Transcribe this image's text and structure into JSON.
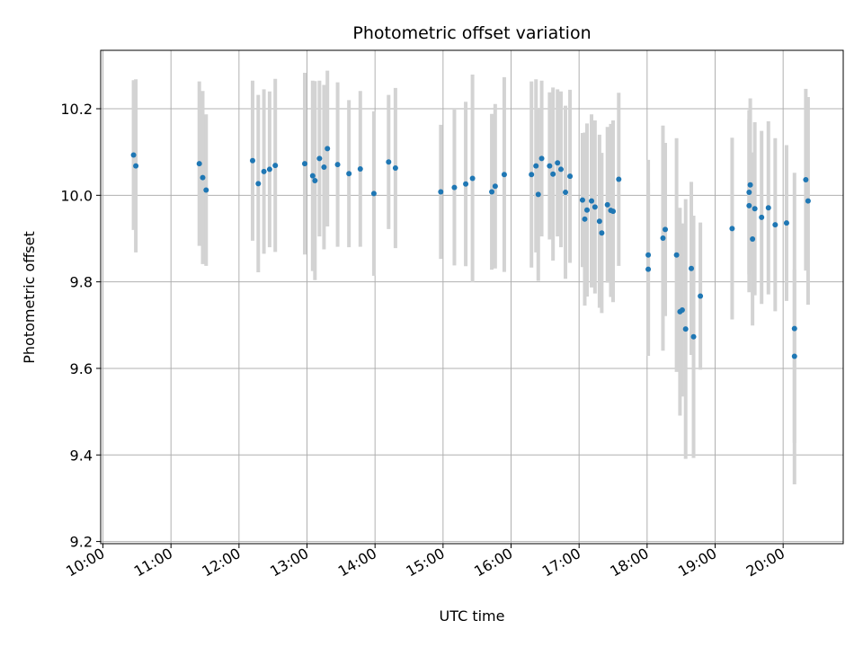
{
  "chart_data": {
    "type": "scatter",
    "title": "Photometric offset variation",
    "xlabel": "UTC time",
    "ylabel": "Photometric offset",
    "x_unit": "UTC hh:mm",
    "xlim": [
      "09:58",
      "20:53"
    ],
    "ylim": [
      9.195,
      10.335
    ],
    "x_ticks": [
      "10:00",
      "11:00",
      "12:00",
      "13:00",
      "14:00",
      "15:00",
      "16:00",
      "17:00",
      "18:00",
      "19:00",
      "20:00"
    ],
    "y_ticks": [
      9.2,
      9.4,
      9.6,
      9.8,
      10.0,
      10.2
    ],
    "y_tick_labels": [
      "9.2",
      "9.4",
      "9.6",
      "9.8",
      "10.0",
      "10.2"
    ],
    "grid": true,
    "legend": "none",
    "colors": {
      "points": "#1f77b4",
      "error_bars": "#d3d3d3",
      "grid": "#b0b0b0"
    },
    "series": [
      {
        "x": [
          "10:27",
          "10:29",
          "11:25",
          "11:28",
          "11:31",
          "12:12",
          "12:17",
          "12:22",
          "12:27",
          "12:32",
          "12:58",
          "13:05",
          "13:07",
          "13:11",
          "13:15",
          "13:18",
          "13:27",
          "13:37",
          "13:47",
          "13:59",
          "14:12",
          "14:18",
          "14:58",
          "15:10",
          "15:20",
          "15:26",
          "15:43",
          "15:46",
          "15:54",
          "16:18",
          "16:22",
          "16:24",
          "16:27",
          "16:34",
          "16:37",
          "16:41",
          "16:44",
          "16:48",
          "16:52",
          "17:03",
          "17:05",
          "17:07",
          "17:11",
          "17:14",
          "17:18",
          "17:20",
          "17:25",
          "17:28",
          "17:30",
          "17:35",
          "18:01",
          "18:01",
          "18:14",
          "18:16",
          "18:26",
          "18:29",
          "18:31",
          "18:34",
          "18:39",
          "18:41",
          "18:47",
          "19:15",
          "19:30",
          "19:30",
          "19:31",
          "19:33",
          "19:35",
          "19:41",
          "19:47",
          "19:53",
          "20:03",
          "20:10",
          "20:10",
          "20:20",
          "20:22"
        ],
        "y": [
          10.093,
          10.068,
          10.073,
          10.041,
          10.012,
          10.08,
          10.027,
          10.055,
          10.06,
          10.069,
          10.073,
          10.045,
          10.034,
          10.085,
          10.065,
          10.108,
          10.071,
          10.05,
          10.061,
          10.004,
          10.077,
          10.063,
          10.008,
          10.018,
          10.026,
          10.039,
          10.008,
          10.021,
          10.048,
          10.048,
          10.068,
          10.002,
          10.085,
          10.068,
          10.049,
          10.075,
          10.06,
          10.007,
          10.044,
          9.989,
          9.945,
          9.966,
          9.987,
          9.973,
          9.94,
          9.913,
          9.978,
          9.965,
          9.963,
          10.037,
          9.862,
          9.829,
          9.901,
          9.921,
          9.862,
          9.731,
          9.735,
          9.691,
          9.831,
          9.673,
          9.767,
          9.923,
          9.976,
          10.007,
          10.024,
          9.899,
          9.969,
          9.949,
          9.971,
          9.932,
          9.936,
          9.692,
          9.628,
          10.036,
          9.987
        ],
        "error": [
          0.173,
          0.2,
          0.19,
          0.2,
          0.175,
          0.185,
          0.205,
          0.19,
          0.18,
          0.2,
          0.21,
          0.22,
          0.23,
          0.18,
          0.19,
          0.18,
          0.19,
          0.17,
          0.18,
          0.19,
          0.155,
          0.185,
          0.155,
          0.18,
          0.19,
          0.24,
          0.18,
          0.19,
          0.225,
          0.215,
          0.2,
          0.2,
          0.18,
          0.17,
          0.2,
          0.17,
          0.18,
          0.2,
          0.2,
          0.155,
          0.2,
          0.2,
          0.2,
          0.2,
          0.2,
          0.185,
          0.18,
          0.2,
          0.21,
          0.2,
          0.22,
          0.2,
          0.26,
          0.2,
          0.27,
          0.24,
          0.2,
          0.3,
          0.2,
          0.28,
          0.17,
          0.21,
          0.2,
          0.19,
          0.2,
          0.2,
          0.2,
          0.2,
          0.2,
          0.2,
          0.18,
          0.36,
          0.2,
          0.21,
          0.24
        ]
      }
    ]
  }
}
